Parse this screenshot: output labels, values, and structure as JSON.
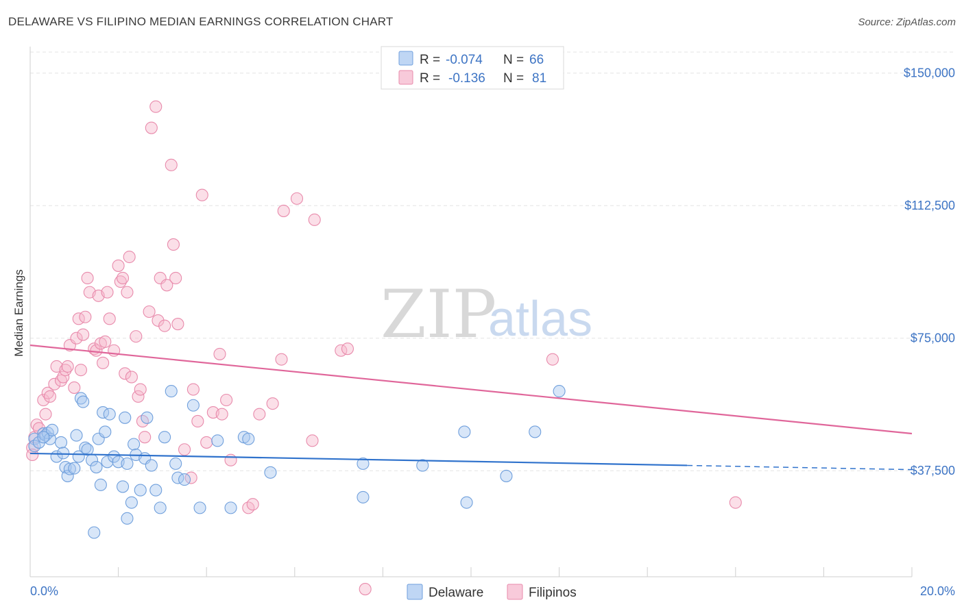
{
  "title": "DELAWARE VS FILIPINO MEDIAN EARNINGS CORRELATION CHART",
  "source": "Source: ZipAtlas.com",
  "watermark": {
    "part1": "ZIP",
    "part2": "atlas"
  },
  "colors": {
    "delaware_fill": "#a9c8f0",
    "delaware_stroke": "#6f9fdc",
    "delaware_line": "#2f72cc",
    "filipino_fill": "#f6b8cd",
    "filipino_stroke": "#e88aab",
    "filipino_line": "#e0669a",
    "tick_label": "#3d74c4",
    "grid": "#e3e3e3"
  },
  "legend": {
    "rows": [
      {
        "r_label": "R = ",
        "r_value": "-0.074",
        "n_label": "N = ",
        "n_value": "66"
      },
      {
        "r_label": "R = ",
        "r_value": "-0.136",
        "n_label": "N = ",
        "n_value": "81"
      }
    ]
  },
  "bottom_legend": [
    "Delaware",
    "Filipinos"
  ],
  "chart_data": {
    "type": "scatter",
    "xlabel": "",
    "ylabel": "Median Earnings",
    "xlim": [
      0,
      20
    ],
    "ylim": [
      7500,
      157500
    ],
    "x_tick_labels": [
      "0.0%",
      "20.0%"
    ],
    "y_ticks": [
      37500,
      75000,
      112500,
      150000
    ],
    "y_tick_labels": [
      "$37,500",
      "$75,000",
      "$112,500",
      "$150,000"
    ],
    "grid": true,
    "legend_position": "top-center",
    "series": [
      {
        "name": "Delaware",
        "r": -0.074,
        "n": 66,
        "trend": {
          "x0": 0,
          "y0": 42400,
          "x1": 14.9,
          "y1": 39000,
          "dashed_to_x": 20,
          "dashed_to_y": 37800
        },
        "points": [
          [
            0.1,
            46500
          ],
          [
            0.1,
            44500
          ],
          [
            0.2,
            45500
          ],
          [
            0.3,
            48000
          ],
          [
            0.35,
            47500
          ],
          [
            0.4,
            48200
          ],
          [
            0.45,
            46500
          ],
          [
            0.5,
            49000
          ],
          [
            0.6,
            41500
          ],
          [
            0.7,
            45500
          ],
          [
            0.75,
            42500
          ],
          [
            0.8,
            38500
          ],
          [
            0.85,
            36000
          ],
          [
            0.9,
            38000
          ],
          [
            1.0,
            38200
          ],
          [
            1.05,
            47500
          ],
          [
            1.1,
            41500
          ],
          [
            1.15,
            58000
          ],
          [
            1.2,
            57000
          ],
          [
            1.25,
            44000
          ],
          [
            1.3,
            43500
          ],
          [
            1.4,
            40500
          ],
          [
            1.5,
            38500
          ],
          [
            1.55,
            46500
          ],
          [
            1.6,
            33500
          ],
          [
            1.65,
            54000
          ],
          [
            1.7,
            48500
          ],
          [
            1.75,
            40000
          ],
          [
            1.8,
            53500
          ],
          [
            1.9,
            41500
          ],
          [
            2.0,
            40000
          ],
          [
            2.1,
            33000
          ],
          [
            2.15,
            52500
          ],
          [
            2.2,
            39500
          ],
          [
            2.3,
            28500
          ],
          [
            2.35,
            45000
          ],
          [
            2.4,
            42000
          ],
          [
            2.5,
            32000
          ],
          [
            2.6,
            41000
          ],
          [
            2.65,
            52500
          ],
          [
            2.75,
            39000
          ],
          [
            2.85,
            32000
          ],
          [
            2.95,
            27000
          ],
          [
            3.05,
            47000
          ],
          [
            3.2,
            60000
          ],
          [
            3.3,
            39500
          ],
          [
            3.35,
            35500
          ],
          [
            3.5,
            35000
          ],
          [
            3.7,
            56000
          ],
          [
            3.85,
            27000
          ],
          [
            4.25,
            46000
          ],
          [
            4.55,
            27000
          ],
          [
            4.85,
            47000
          ],
          [
            4.95,
            46500
          ],
          [
            5.45,
            37000
          ],
          [
            7.55,
            30000
          ],
          [
            7.55,
            39500
          ],
          [
            8.9,
            39000
          ],
          [
            9.85,
            48500
          ],
          [
            9.9,
            28500
          ],
          [
            10.8,
            36000
          ],
          [
            11.45,
            48500
          ],
          [
            12.0,
            60000
          ],
          [
            1.45,
            20000
          ],
          [
            2.2,
            24000
          ],
          [
            0.3,
            47000
          ]
        ]
      },
      {
        "name": "Filipinos",
        "r": -0.136,
        "n": 81,
        "trend": {
          "x0": 0,
          "y0": 73000,
          "x1": 20,
          "y1": 48000
        },
        "points": [
          [
            0.05,
            44000
          ],
          [
            0.05,
            42000
          ],
          [
            0.1,
            47000
          ],
          [
            0.15,
            50500
          ],
          [
            0.2,
            49500
          ],
          [
            0.3,
            57500
          ],
          [
            0.35,
            53500
          ],
          [
            0.4,
            59500
          ],
          [
            0.45,
            58500
          ],
          [
            0.55,
            62000
          ],
          [
            0.6,
            67000
          ],
          [
            0.7,
            63000
          ],
          [
            0.75,
            64000
          ],
          [
            0.8,
            66000
          ],
          [
            0.85,
            67000
          ],
          [
            0.9,
            73000
          ],
          [
            1.0,
            61000
          ],
          [
            1.05,
            75000
          ],
          [
            1.1,
            80500
          ],
          [
            1.15,
            66000
          ],
          [
            1.2,
            76000
          ],
          [
            1.25,
            81000
          ],
          [
            1.3,
            92000
          ],
          [
            1.35,
            88000
          ],
          [
            1.45,
            72000
          ],
          [
            1.5,
            71500
          ],
          [
            1.55,
            87000
          ],
          [
            1.6,
            73500
          ],
          [
            1.65,
            68000
          ],
          [
            1.7,
            74000
          ],
          [
            1.75,
            88000
          ],
          [
            1.8,
            80500
          ],
          [
            1.9,
            71500
          ],
          [
            2.0,
            95500
          ],
          [
            2.05,
            91000
          ],
          [
            2.1,
            92000
          ],
          [
            2.15,
            65000
          ],
          [
            2.2,
            88000
          ],
          [
            2.25,
            98000
          ],
          [
            2.3,
            64000
          ],
          [
            2.4,
            75500
          ],
          [
            2.45,
            58500
          ],
          [
            2.5,
            60500
          ],
          [
            2.55,
            51500
          ],
          [
            2.6,
            47000
          ],
          [
            2.7,
            82500
          ],
          [
            2.75,
            134500
          ],
          [
            2.85,
            140500
          ],
          [
            2.9,
            80000
          ],
          [
            2.95,
            92000
          ],
          [
            3.05,
            78500
          ],
          [
            3.1,
            90000
          ],
          [
            3.2,
            124000
          ],
          [
            3.25,
            101500
          ],
          [
            3.3,
            92000
          ],
          [
            3.35,
            79000
          ],
          [
            3.5,
            43500
          ],
          [
            3.65,
            35500
          ],
          [
            3.7,
            60500
          ],
          [
            3.8,
            51500
          ],
          [
            3.9,
            115500
          ],
          [
            4.0,
            45500
          ],
          [
            4.15,
            54000
          ],
          [
            4.3,
            70500
          ],
          [
            4.35,
            53500
          ],
          [
            4.45,
            57500
          ],
          [
            4.55,
            40500
          ],
          [
            4.95,
            27000
          ],
          [
            5.05,
            28000
          ],
          [
            5.2,
            53500
          ],
          [
            5.5,
            56500
          ],
          [
            5.7,
            69000
          ],
          [
            5.75,
            111000
          ],
          [
            6.05,
            114500
          ],
          [
            6.4,
            46000
          ],
          [
            6.45,
            108500
          ],
          [
            7.05,
            71500
          ],
          [
            7.2,
            72000
          ],
          [
            7.6,
            4000
          ],
          [
            11.85,
            69000
          ],
          [
            16.0,
            28500
          ]
        ]
      }
    ]
  }
}
